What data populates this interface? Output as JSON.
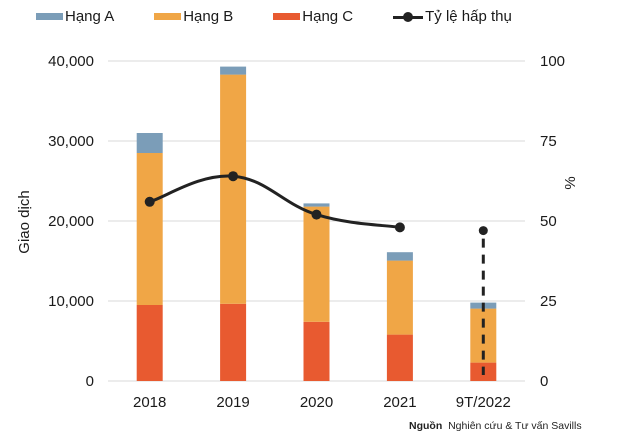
{
  "chart_data": {
    "type": "bar",
    "stacked": true,
    "title": "",
    "categories": [
      "2018",
      "2019",
      "2020",
      "2021",
      "9T/2022"
    ],
    "series": [
      {
        "name": "Hạng C",
        "color": "#E85A30",
        "values": [
          9500,
          9650,
          7400,
          5800,
          2300
        ]
      },
      {
        "name": "Hạng B",
        "color": "#F0A646",
        "values": [
          19000,
          28650,
          14400,
          9250,
          6750
        ]
      },
      {
        "name": "Hạng A",
        "color": "#7B9DB8",
        "values": [
          2500,
          1000,
          400,
          1050,
          750
        ]
      }
    ],
    "line_series": {
      "name": "Tỷ lệ hấp thụ",
      "color": "#222222",
      "axis": "right",
      "values": [
        56,
        64,
        52,
        48,
        47
      ],
      "note": "9T/2022 point shown as a dashed drop line, not connected to the 2021 point"
    },
    "legend": {
      "position": "top",
      "entries": [
        "Hạng A",
        "Hạng B",
        "Hạng C",
        "Tỷ lệ hấp thụ"
      ]
    },
    "ylabel": "Giao dịch",
    "y2label": "%",
    "xlabel": "",
    "ylim": [
      0,
      40000
    ],
    "y2lim": [
      0,
      100
    ],
    "yticks": [
      "0",
      "10,000",
      "20,000",
      "30,000",
      "40,000"
    ],
    "y2ticks": [
      "0",
      "25",
      "50",
      "75",
      "100"
    ],
    "grid": true
  },
  "source": {
    "label": "Nguồn",
    "text": "Nghiên cứu & Tư vấn Savills"
  }
}
